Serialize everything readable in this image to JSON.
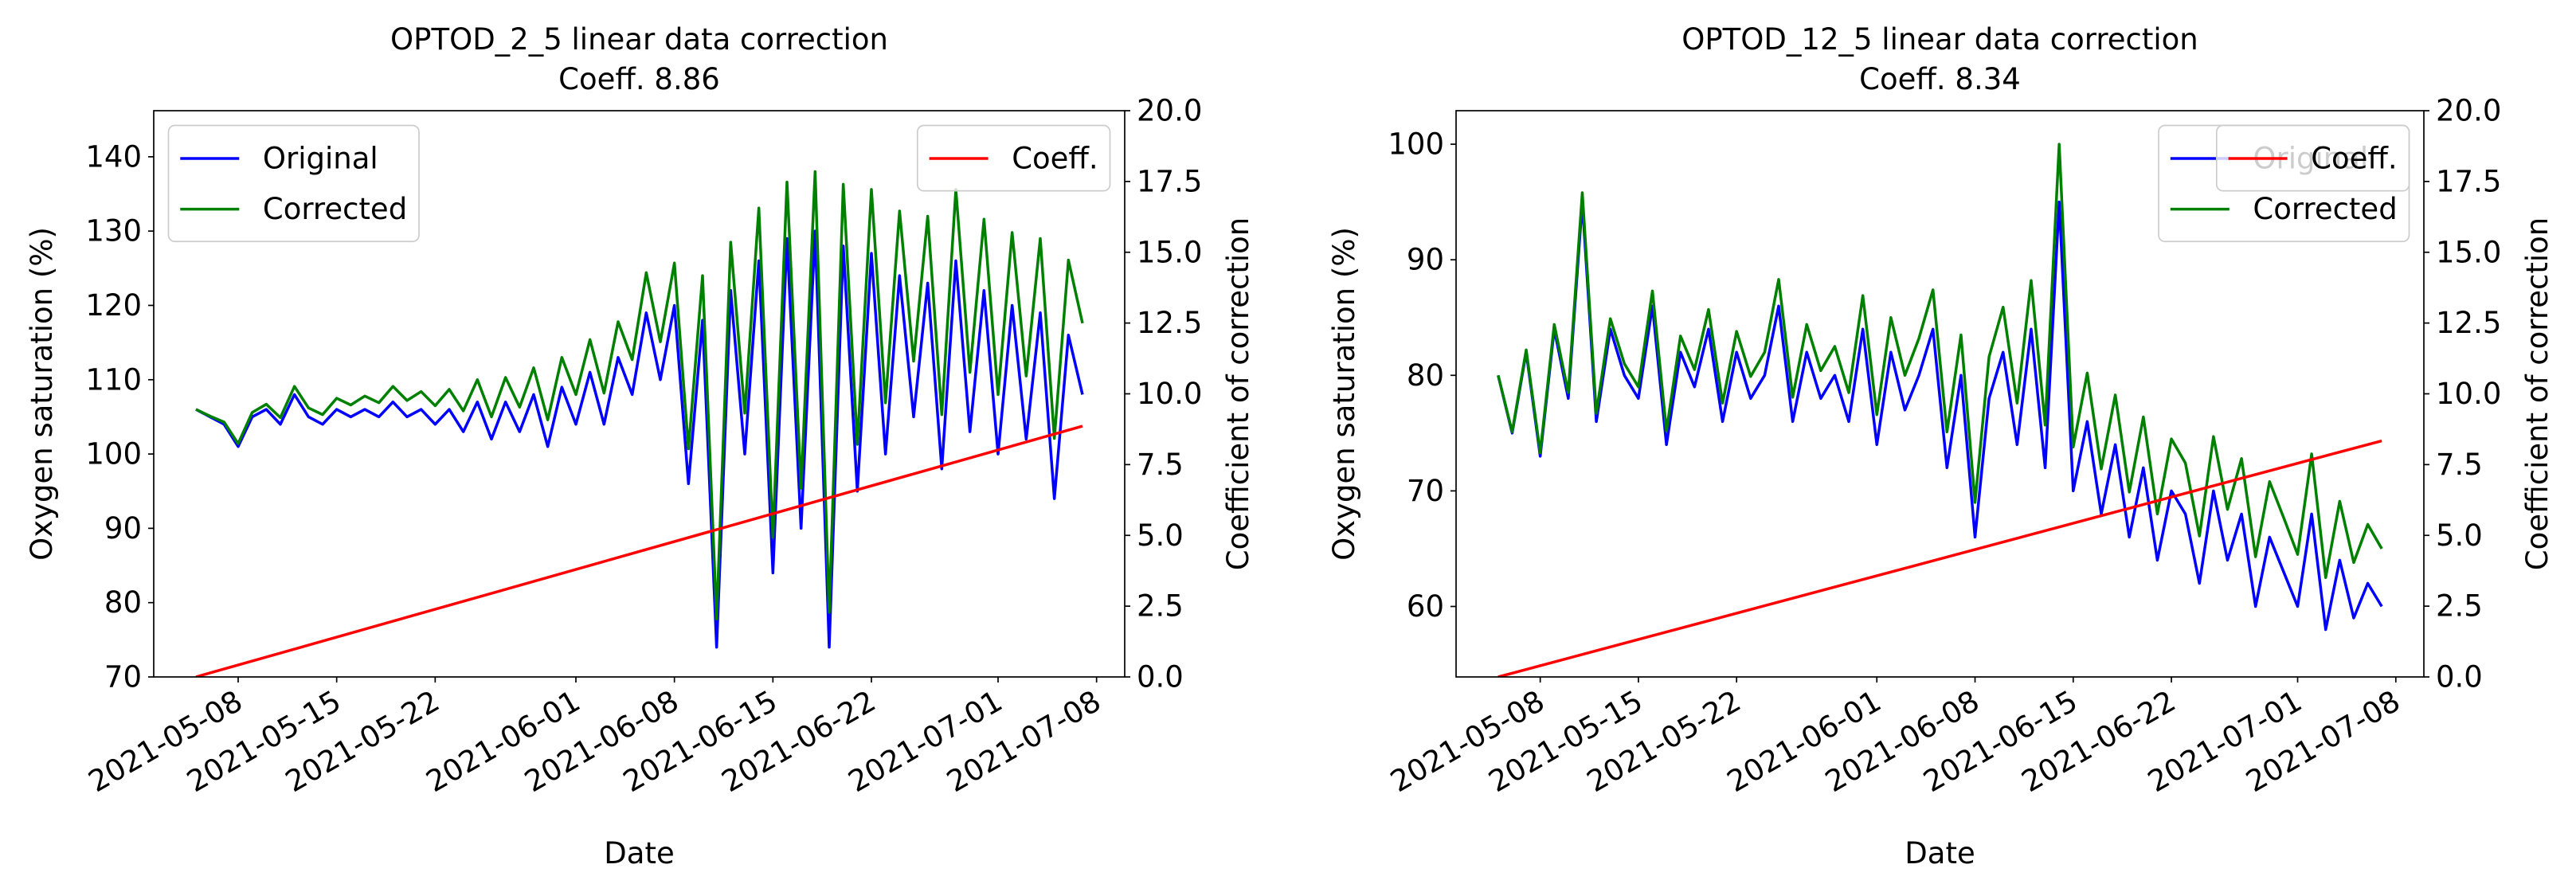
{
  "chart_data": [
    {
      "type": "line",
      "title": "OPTOD_2_5 linear data correction",
      "subtitle": "Coeff. 8.86",
      "xlabel": "Date",
      "ylabel": "Oxygen saturation (%)",
      "y2label": "Coefficient of correction",
      "x": [
        "2021-05-05",
        "2021-05-06",
        "2021-05-07",
        "2021-05-08",
        "2021-05-09",
        "2021-05-10",
        "2021-05-11",
        "2021-05-12",
        "2021-05-13",
        "2021-05-14",
        "2021-05-15",
        "2021-05-16",
        "2021-05-17",
        "2021-05-18",
        "2021-05-19",
        "2021-05-20",
        "2021-05-21",
        "2021-05-22",
        "2021-05-23",
        "2021-05-24",
        "2021-05-25",
        "2021-05-26",
        "2021-05-27",
        "2021-05-28",
        "2021-05-29",
        "2021-05-30",
        "2021-05-31",
        "2021-06-01",
        "2021-06-02",
        "2021-06-03",
        "2021-06-04",
        "2021-06-05",
        "2021-06-06",
        "2021-06-07",
        "2021-06-08",
        "2021-06-09",
        "2021-06-10",
        "2021-06-11",
        "2021-06-12",
        "2021-06-13",
        "2021-06-14",
        "2021-06-15",
        "2021-06-16",
        "2021-06-17",
        "2021-06-18",
        "2021-06-19",
        "2021-06-20",
        "2021-06-21",
        "2021-06-22",
        "2021-06-23",
        "2021-06-24",
        "2021-06-25",
        "2021-06-26",
        "2021-06-27",
        "2021-06-28",
        "2021-06-29",
        "2021-06-30",
        "2021-07-01",
        "2021-07-02",
        "2021-07-03",
        "2021-07-04",
        "2021-07-05",
        "2021-07-06",
        "2021-07-07"
      ],
      "series": [
        {
          "name": "Original",
          "color": "#0000ff",
          "values": [
            106,
            105,
            104,
            101,
            105,
            106,
            104,
            108,
            105,
            104,
            106,
            105,
            106,
            105,
            107,
            105,
            106,
            104,
            106,
            103,
            107,
            102,
            107,
            103,
            108,
            101,
            109,
            104,
            111,
            104,
            113,
            108,
            119,
            110,
            120,
            96,
            118,
            74,
            122,
            100,
            126,
            84,
            129,
            90,
            130,
            74,
            128,
            95,
            127,
            100,
            124,
            105,
            123,
            98,
            126,
            103,
            122,
            100,
            120,
            102,
            119,
            94,
            116,
            108
          ]
        },
        {
          "name": "Corrected",
          "color": "#008000",
          "values": [
            106,
            105.1,
            104.3,
            101.4,
            105.6,
            106.7,
            104.9,
            109.1,
            106.2,
            105.3,
            107.5,
            106.6,
            107.8,
            106.9,
            109.1,
            107.2,
            108.4,
            106.5,
            108.7,
            105.8,
            110.0,
            105.0,
            110.3,
            106.3,
            111.6,
            104.6,
            113.0,
            108.0,
            115.4,
            108.2,
            117.8,
            112.7,
            124.4,
            115.1,
            125.7,
            100.7,
            124.0,
            77.8,
            128.5,
            105.5,
            133.1,
            88.8,
            136.6,
            95.4,
            138.0,
            78.7,
            136.3,
            101.3,
            135.6,
            106.9,
            132.7,
            112.5,
            132.0,
            105.3,
            135.6,
            111.0,
            131.6,
            108.0,
            129.8,
            110.5,
            129.0,
            102.1,
            126.1,
            117.6
          ]
        },
        {
          "name": "Coeff.",
          "color": "#ff0000",
          "axis": "y2",
          "x": [
            "2021-05-05",
            "2021-07-07"
          ],
          "values": [
            0,
            8.86
          ]
        }
      ],
      "xlim": [
        "2021-05-02",
        "2021-07-10"
      ],
      "xticks": [
        "2021-05-08",
        "2021-05-15",
        "2021-05-22",
        "2021-06-01",
        "2021-06-08",
        "2021-06-15",
        "2021-06-22",
        "2021-07-01",
        "2021-07-08"
      ],
      "ylim": [
        70,
        146.2
      ],
      "yticks": [
        70,
        80,
        90,
        100,
        110,
        120,
        130,
        140
      ],
      "y2lim": [
        0,
        20
      ],
      "y2ticks": [
        {
          "value": 0,
          "label": "0.0"
        },
        {
          "value": 2.5,
          "label": "2.5"
        },
        {
          "value": 5,
          "label": "5.0"
        },
        {
          "value": 7.5,
          "label": "7.5"
        },
        {
          "value": 10,
          "label": "10.0"
        },
        {
          "value": 12.5,
          "label": "12.5"
        },
        {
          "value": 15,
          "label": "15.0"
        },
        {
          "value": 17.5,
          "label": "17.5"
        },
        {
          "value": 20,
          "label": "20.0"
        }
      ],
      "legend": "upper left",
      "legend2": "upper right"
    },
    {
      "type": "line",
      "title": "OPTOD_12_5 linear data correction",
      "subtitle": "Coeff. 8.34",
      "xlabel": "Date",
      "ylabel": "Oxygen saturation (%)",
      "y2label": "Coefficient of correction",
      "x": [
        "2021-05-05",
        "2021-05-06",
        "2021-05-07",
        "2021-05-08",
        "2021-05-09",
        "2021-05-10",
        "2021-05-11",
        "2021-05-12",
        "2021-05-13",
        "2021-05-14",
        "2021-05-15",
        "2021-05-16",
        "2021-05-17",
        "2021-05-18",
        "2021-05-19",
        "2021-05-20",
        "2021-05-21",
        "2021-05-22",
        "2021-05-23",
        "2021-05-24",
        "2021-05-25",
        "2021-05-26",
        "2021-05-27",
        "2021-05-28",
        "2021-05-29",
        "2021-05-30",
        "2021-05-31",
        "2021-06-01",
        "2021-06-02",
        "2021-06-03",
        "2021-06-04",
        "2021-06-05",
        "2021-06-06",
        "2021-06-07",
        "2021-06-08",
        "2021-06-09",
        "2021-06-10",
        "2021-06-11",
        "2021-06-12",
        "2021-06-13",
        "2021-06-14",
        "2021-06-15",
        "2021-06-16",
        "2021-06-17",
        "2021-06-18",
        "2021-06-19",
        "2021-06-20",
        "2021-06-21",
        "2021-06-22",
        "2021-06-23",
        "2021-06-24",
        "2021-06-25",
        "2021-06-26",
        "2021-06-27",
        "2021-06-28",
        "2021-06-29",
        "2021-06-30",
        "2021-07-01",
        "2021-07-02",
        "2021-07-03",
        "2021-07-04",
        "2021-07-05",
        "2021-07-06",
        "2021-07-07"
      ],
      "series": [
        {
          "name": "Original",
          "color": "#0000ff",
          "values": [
            80,
            75,
            82,
            73,
            84,
            78,
            95,
            76,
            84,
            80,
            78,
            86,
            74,
            82,
            79,
            84,
            76,
            82,
            78,
            80,
            86,
            76,
            82,
            78,
            80,
            76,
            84,
            74,
            82,
            77,
            80,
            84,
            72,
            80,
            66,
            78,
            82,
            74,
            84,
            72,
            95,
            70,
            76,
            68,
            74,
            66,
            72,
            64,
            70,
            68,
            62,
            70,
            64,
            68,
            60,
            66,
            63,
            60,
            68,
            58,
            64,
            59,
            62,
            60
          ]
        },
        {
          "name": "Corrected",
          "color": "#008000",
          "values": [
            80,
            75.1,
            82.2,
            73.3,
            84.4,
            78.5,
            95.8,
            76.7,
            84.9,
            81.0,
            79.0,
            87.3,
            75.2,
            83.4,
            80.5,
            85.7,
            77.6,
            83.8,
            79.9,
            82.0,
            88.3,
            78.1,
            84.4,
            80.4,
            82.5,
            78.5,
            86.9,
            76.6,
            85.0,
            80.0,
            83.2,
            87.4,
            75.1,
            83.5,
            69.0,
            81.6,
            85.9,
            77.6,
            88.2,
            75.7,
            100.0,
            73.8,
            80.2,
            71.9,
            78.3,
            69.9,
            76.4,
            68.0,
            74.5,
            72.4,
            66.1,
            74.7,
            68.4,
            72.8,
            64.3,
            70.8,
            67.7,
            64.5,
            73.2,
            62.5,
            69.1,
            63.8,
            67.1,
            65.0
          ]
        },
        {
          "name": "Coeff.",
          "color": "#ff0000",
          "axis": "y2",
          "x": [
            "2021-05-05",
            "2021-07-07"
          ],
          "values": [
            0,
            8.34
          ]
        }
      ],
      "xlim": [
        "2021-05-02",
        "2021-07-10"
      ],
      "xticks": [
        "2021-05-08",
        "2021-05-15",
        "2021-05-22",
        "2021-06-01",
        "2021-06-08",
        "2021-06-15",
        "2021-06-22",
        "2021-07-01",
        "2021-07-08"
      ],
      "ylim": [
        53.9,
        102.9
      ],
      "yticks": [
        60,
        70,
        80,
        90,
        100
      ],
      "y2lim": [
        0,
        20
      ],
      "y2ticks": [
        {
          "value": 0,
          "label": "0.0"
        },
        {
          "value": 2.5,
          "label": "2.5"
        },
        {
          "value": 5,
          "label": "5.0"
        },
        {
          "value": 7.5,
          "label": "7.5"
        },
        {
          "value": 10,
          "label": "10.0"
        },
        {
          "value": 12.5,
          "label": "12.5"
        },
        {
          "value": 15,
          "label": "15.0"
        },
        {
          "value": 17.5,
          "label": "17.5"
        },
        {
          "value": 20,
          "label": "20.0"
        }
      ],
      "legend": "upper right",
      "legend2": "upper right"
    }
  ]
}
